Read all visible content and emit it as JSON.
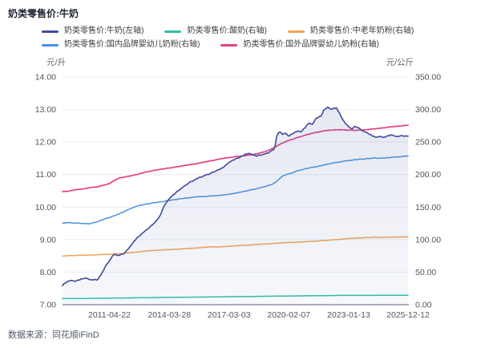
{
  "header": {
    "title": "奶类零售价:牛奶"
  },
  "footer": {
    "source": "数据来源：同花顺iFinD"
  },
  "chart_data": {
    "type": "line",
    "title": "奶类零售价:牛奶",
    "legend_position": "top",
    "grid": "horizontal",
    "left_axis": {
      "unit": "元/升",
      "min": 7,
      "max": 14,
      "ticks": [
        "14.00",
        "13.00",
        "12.00",
        "11.00",
        "10.00",
        "9.00",
        "8.00",
        "7.00"
      ]
    },
    "right_axis": {
      "unit": "元/公斤",
      "min": 0,
      "max": 350,
      "ticks": [
        "350.00",
        "300.00",
        "250.00",
        "200.00",
        "150.00",
        "100.00",
        "50.00",
        "0.00"
      ]
    },
    "x_axis": {
      "min": 2009.0,
      "max": 2025.95,
      "tick_labels": [
        "2011-04-22",
        "2014-03-28",
        "2017-03-03",
        "2020-02-07",
        "2023-01-13",
        "2025-12-12"
      ],
      "tick_years": [
        2011.3,
        2014.24,
        2017.17,
        2020.1,
        2023.04,
        2025.95
      ]
    },
    "colors": {
      "milk": "#3f4c9b",
      "yogurt": "#2ec0a9",
      "senior_powder": "#f2a355",
      "domestic_infant": "#4693e0",
      "foreign_infant": "#e5407f",
      "grid": "#e9ebf2",
      "baseline": "#a9afbc",
      "axis_text": "#555555"
    },
    "series": [
      {
        "name": "奶类零售价:牛奶(左轴)",
        "axis": "left",
        "color": "#3f4c9b",
        "area": true,
        "z": 10,
        "width": 1.6,
        "jitter": 0.03,
        "points": [
          [
            2009.0,
            7.6
          ],
          [
            2009.15,
            7.68
          ],
          [
            2009.3,
            7.73
          ],
          [
            2009.5,
            7.75
          ],
          [
            2009.65,
            7.71
          ],
          [
            2009.8,
            7.76
          ],
          [
            2010.0,
            7.79
          ],
          [
            2010.15,
            7.82
          ],
          [
            2010.3,
            7.78
          ],
          [
            2010.45,
            7.75
          ],
          [
            2010.6,
            7.78
          ],
          [
            2010.72,
            7.76
          ],
          [
            2010.85,
            7.9
          ],
          [
            2011.0,
            8.05
          ],
          [
            2011.15,
            8.22
          ],
          [
            2011.3,
            8.35
          ],
          [
            2011.45,
            8.5
          ],
          [
            2011.6,
            8.54
          ],
          [
            2011.75,
            8.5
          ],
          [
            2011.9,
            8.55
          ],
          [
            2012.05,
            8.58
          ],
          [
            2012.2,
            8.7
          ],
          [
            2012.35,
            8.82
          ],
          [
            2012.5,
            8.95
          ],
          [
            2012.65,
            9.05
          ],
          [
            2012.8,
            9.12
          ],
          [
            2013.0,
            9.25
          ],
          [
            2013.2,
            9.35
          ],
          [
            2013.4,
            9.46
          ],
          [
            2013.6,
            9.58
          ],
          [
            2013.8,
            9.75
          ],
          [
            2013.95,
            10.0
          ],
          [
            2014.1,
            10.16
          ],
          [
            2014.3,
            10.3
          ],
          [
            2014.5,
            10.42
          ],
          [
            2014.7,
            10.52
          ],
          [
            2014.9,
            10.62
          ],
          [
            2015.1,
            10.7
          ],
          [
            2015.3,
            10.78
          ],
          [
            2015.5,
            10.84
          ],
          [
            2015.7,
            10.9
          ],
          [
            2015.9,
            10.96
          ],
          [
            2016.1,
            11.0
          ],
          [
            2016.3,
            11.05
          ],
          [
            2016.5,
            11.1
          ],
          [
            2016.7,
            11.16
          ],
          [
            2016.9,
            11.24
          ],
          [
            2017.1,
            11.34
          ],
          [
            2017.3,
            11.42
          ],
          [
            2017.5,
            11.48
          ],
          [
            2017.7,
            11.54
          ],
          [
            2017.9,
            11.6
          ],
          [
            2018.1,
            11.65
          ],
          [
            2018.3,
            11.62
          ],
          [
            2018.5,
            11.57
          ],
          [
            2018.7,
            11.6
          ],
          [
            2018.9,
            11.62
          ],
          [
            2019.1,
            11.67
          ],
          [
            2019.25,
            11.72
          ],
          [
            2019.4,
            11.78
          ],
          [
            2019.5,
            12.15
          ],
          [
            2019.6,
            12.33
          ],
          [
            2019.7,
            12.3
          ],
          [
            2019.8,
            12.22
          ],
          [
            2019.95,
            12.27
          ],
          [
            2020.1,
            12.18
          ],
          [
            2020.25,
            12.24
          ],
          [
            2020.4,
            12.31
          ],
          [
            2020.55,
            12.34
          ],
          [
            2020.7,
            12.3
          ],
          [
            2020.85,
            12.42
          ],
          [
            2021.0,
            12.52
          ],
          [
            2021.1,
            12.58
          ],
          [
            2021.25,
            12.54
          ],
          [
            2021.4,
            12.7
          ],
          [
            2021.55,
            12.76
          ],
          [
            2021.7,
            12.8
          ],
          [
            2021.85,
            13.02
          ],
          [
            2022.0,
            13.07
          ],
          [
            2022.15,
            13.01
          ],
          [
            2022.3,
            13.04
          ],
          [
            2022.45,
            13.05
          ],
          [
            2022.6,
            12.86
          ],
          [
            2022.75,
            12.68
          ],
          [
            2022.9,
            12.56
          ],
          [
            2023.05,
            12.47
          ],
          [
            2023.2,
            12.4
          ],
          [
            2023.35,
            12.48
          ],
          [
            2023.5,
            12.43
          ],
          [
            2023.65,
            12.38
          ],
          [
            2023.8,
            12.32
          ],
          [
            2024.0,
            12.26
          ],
          [
            2024.2,
            12.19
          ],
          [
            2024.4,
            12.14
          ],
          [
            2024.55,
            12.18
          ],
          [
            2024.7,
            12.14
          ],
          [
            2024.85,
            12.17
          ],
          [
            2025.0,
            12.19
          ],
          [
            2025.15,
            12.22
          ],
          [
            2025.3,
            12.18
          ],
          [
            2025.45,
            12.17
          ],
          [
            2025.6,
            12.2
          ],
          [
            2025.75,
            12.18
          ],
          [
            2025.95,
            12.18
          ]
        ]
      },
      {
        "name": "奶类零售价:酸奶(右轴)",
        "axis": "right",
        "color": "#2ec0a9",
        "area": false,
        "z": 1,
        "width": 1.5,
        "jitter": 0.1,
        "points": [
          [
            2009.0,
            9.4
          ],
          [
            2010.0,
            9.6
          ],
          [
            2011.0,
            9.9
          ],
          [
            2012.0,
            10.3
          ],
          [
            2013.0,
            10.8
          ],
          [
            2014.0,
            11.2
          ],
          [
            2015.0,
            11.5
          ],
          [
            2016.0,
            11.8
          ],
          [
            2017.0,
            12.2
          ],
          [
            2018.0,
            12.6
          ],
          [
            2019.0,
            13.0
          ],
          [
            2019.7,
            13.2
          ],
          [
            2020.0,
            13.3
          ],
          [
            2021.0,
            13.7
          ],
          [
            2022.0,
            14.0
          ],
          [
            2022.5,
            14.2
          ],
          [
            2023.0,
            14.3
          ],
          [
            2024.0,
            14.3
          ],
          [
            2025.0,
            14.4
          ],
          [
            2025.95,
            14.4
          ]
        ]
      },
      {
        "name": "奶类零售价:中老年奶粉(右轴)",
        "axis": "right",
        "color": "#f2a355",
        "area": false,
        "z": 2,
        "width": 1.5,
        "jitter": 0.55,
        "points": [
          [
            2009.0,
            75
          ],
          [
            2009.5,
            75.5
          ],
          [
            2010.0,
            76
          ],
          [
            2010.5,
            76.5
          ],
          [
            2011.0,
            77.2
          ],
          [
            2011.5,
            77.8
          ],
          [
            2012.0,
            79
          ],
          [
            2012.5,
            80.5
          ],
          [
            2013.0,
            82
          ],
          [
            2013.5,
            83.5
          ],
          [
            2014.0,
            84.3
          ],
          [
            2014.5,
            85
          ],
          [
            2015.0,
            86
          ],
          [
            2015.5,
            87
          ],
          [
            2016.0,
            88.3
          ],
          [
            2016.3,
            89
          ],
          [
            2016.55,
            88.5
          ],
          [
            2017.0,
            89.5
          ],
          [
            2017.5,
            90.5
          ],
          [
            2018.0,
            91.5
          ],
          [
            2018.5,
            92.5
          ],
          [
            2019.0,
            93.5
          ],
          [
            2019.5,
            94.5
          ],
          [
            2020.0,
            95.5
          ],
          [
            2020.5,
            96
          ],
          [
            2021.0,
            96.8
          ],
          [
            2021.5,
            97.8
          ],
          [
            2022.0,
            99
          ],
          [
            2022.5,
            100.3
          ],
          [
            2023.0,
            101.5
          ],
          [
            2023.3,
            102.3
          ],
          [
            2023.6,
            102.8
          ],
          [
            2024.0,
            103.2
          ],
          [
            2024.3,
            103.6
          ],
          [
            2024.6,
            103.3
          ],
          [
            2025.0,
            103.6
          ],
          [
            2025.5,
            104
          ],
          [
            2025.95,
            104.2
          ]
        ]
      },
      {
        "name": "奶类零售价:国内品牌婴幼儿奶粉(右轴)",
        "axis": "right",
        "color": "#4693e0",
        "area": false,
        "z": 3,
        "width": 1.5,
        "jitter": 0.8,
        "points": [
          [
            2009.0,
            125.5
          ],
          [
            2009.3,
            126
          ],
          [
            2009.6,
            125.5
          ],
          [
            2010.0,
            125
          ],
          [
            2010.3,
            124.5
          ],
          [
            2010.6,
            126.5
          ],
          [
            2011.0,
            131
          ],
          [
            2011.4,
            135
          ],
          [
            2011.8,
            140
          ],
          [
            2012.2,
            146
          ],
          [
            2012.6,
            151
          ],
          [
            2013.0,
            154
          ],
          [
            2013.4,
            156
          ],
          [
            2013.8,
            158
          ],
          [
            2014.2,
            160
          ],
          [
            2014.6,
            162
          ],
          [
            2015.0,
            163.5
          ],
          [
            2015.5,
            165.5
          ],
          [
            2016.0,
            166.5
          ],
          [
            2016.5,
            167.5
          ],
          [
            2017.0,
            169
          ],
          [
            2017.5,
            171.5
          ],
          [
            2018.0,
            174.5
          ],
          [
            2018.5,
            178
          ],
          [
            2019.0,
            182
          ],
          [
            2019.3,
            185
          ],
          [
            2019.5,
            189
          ],
          [
            2019.65,
            194
          ],
          [
            2019.8,
            198
          ],
          [
            2020.0,
            200
          ],
          [
            2020.3,
            203
          ],
          [
            2020.6,
            206.5
          ],
          [
            2021.0,
            209.5
          ],
          [
            2021.5,
            212.5
          ],
          [
            2022.0,
            216
          ],
          [
            2022.5,
            219
          ],
          [
            2023.0,
            221.5
          ],
          [
            2023.3,
            222.5
          ],
          [
            2023.6,
            223.5
          ],
          [
            2024.0,
            224.8
          ],
          [
            2024.3,
            225.6
          ],
          [
            2024.6,
            224.8
          ],
          [
            2025.0,
            226
          ],
          [
            2025.4,
            227
          ],
          [
            2025.7,
            228
          ],
          [
            2025.95,
            228.7
          ]
        ]
      },
      {
        "name": "奶类零售价:国外品牌婴幼儿奶粉(右轴)",
        "axis": "right",
        "color": "#e5407f",
        "area": false,
        "z": 4,
        "width": 1.7,
        "jitter": 0.6,
        "points": [
          [
            2009.0,
            174
          ],
          [
            2009.3,
            174.5
          ],
          [
            2009.6,
            176.5
          ],
          [
            2010.0,
            178
          ],
          [
            2010.4,
            180
          ],
          [
            2010.7,
            181
          ],
          [
            2011.0,
            183.5
          ],
          [
            2011.3,
            186
          ],
          [
            2011.5,
            190
          ],
          [
            2011.8,
            195
          ],
          [
            2012.2,
            197
          ],
          [
            2012.6,
            200
          ],
          [
            2013.0,
            203
          ],
          [
            2013.5,
            206.5
          ],
          [
            2014.0,
            209
          ],
          [
            2014.5,
            211.5
          ],
          [
            2015.0,
            214
          ],
          [
            2015.5,
            216.5
          ],
          [
            2016.0,
            219.5
          ],
          [
            2016.5,
            222.5
          ],
          [
            2017.0,
            225.5
          ],
          [
            2017.5,
            227.5
          ],
          [
            2018.0,
            229.5
          ],
          [
            2018.5,
            231.5
          ],
          [
            2019.0,
            236
          ],
          [
            2019.3,
            240
          ],
          [
            2019.7,
            247
          ],
          [
            2020.0,
            251.5
          ],
          [
            2020.3,
            254.5
          ],
          [
            2020.6,
            257.5
          ],
          [
            2021.0,
            261.5
          ],
          [
            2021.4,
            264.5
          ],
          [
            2021.8,
            267
          ],
          [
            2022.1,
            268.3
          ],
          [
            2022.5,
            269
          ],
          [
            2023.0,
            268.3
          ],
          [
            2023.4,
            268
          ],
          [
            2023.8,
            268.8
          ],
          [
            2024.2,
            270
          ],
          [
            2024.6,
            271.3
          ],
          [
            2025.0,
            272.8
          ],
          [
            2025.4,
            274
          ],
          [
            2025.7,
            275
          ],
          [
            2025.95,
            276
          ]
        ]
      }
    ]
  }
}
